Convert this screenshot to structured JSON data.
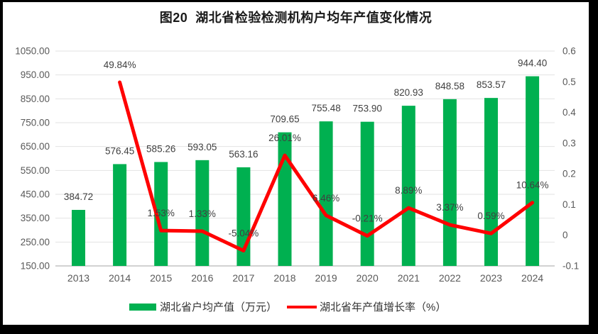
{
  "title": "图20  湖北省检验检测机构户均年产值变化情况",
  "legend": {
    "bar_label": "湖北省户均产值（万元）",
    "line_label": "湖北省年产值增长率（%）"
  },
  "colors": {
    "bar": "#00B050",
    "line": "#FF0000",
    "grid": "#E2E2E2",
    "axis_line": "#D2D2D2",
    "tick_text": "#595959",
    "data_label_text": "#404040",
    "frame": "#000000",
    "background": "#FFFFFF"
  },
  "chart_data": {
    "type": "combo",
    "title": "图20 湖北省检验检测机构户均年产值变化情况",
    "categories": [
      "2013",
      "2014",
      "2015",
      "2016",
      "2017",
      "2018",
      "2019",
      "2020",
      "2021",
      "2022",
      "2023",
      "2024"
    ],
    "series": [
      {
        "name": "湖北省户均产值（万元）",
        "type": "bar",
        "axis": "left",
        "color": "#00B050",
        "values": [
          384.72,
          576.45,
          585.26,
          593.05,
          563.16,
          709.65,
          755.48,
          753.9,
          820.93,
          848.58,
          853.57,
          944.4
        ],
        "labels": [
          "384.72",
          "576.45",
          "585.26",
          "593.05",
          "563.16",
          "709.65",
          "755.48",
          "753.90",
          "820.93",
          "848.58",
          "853.57",
          "944.40"
        ]
      },
      {
        "name": "湖北省年产值增长率（%）",
        "type": "line",
        "axis": "right",
        "color": "#FF0000",
        "values": [
          null,
          0.4984,
          0.0153,
          0.0133,
          -0.0504,
          0.2601,
          0.0646,
          -0.0021,
          0.0889,
          0.0337,
          0.0059,
          0.1064
        ],
        "labels": [
          null,
          "49.84%",
          "1.53%",
          "1.33%",
          "-5.04%",
          "26.01%",
          "6.46%",
          "-0.21%",
          "8.89%",
          "3.37%",
          "0.59%",
          "10.64%"
        ]
      }
    ],
    "left_axis": {
      "min": 150,
      "max": 1050,
      "step": 100,
      "ticks": [
        "1050.00",
        "950.00",
        "850.00",
        "750.00",
        "650.00",
        "550.00",
        "450.00",
        "350.00",
        "250.00",
        "150.00"
      ]
    },
    "right_axis": {
      "min": -0.1,
      "max": 0.6,
      "step": 0.1,
      "ticks": [
        "0.6",
        "0.5",
        "0.4",
        "0.3",
        "0.2",
        "0.1",
        "0",
        "-0.1"
      ]
    },
    "grid": true,
    "legend_position": "bottom"
  }
}
